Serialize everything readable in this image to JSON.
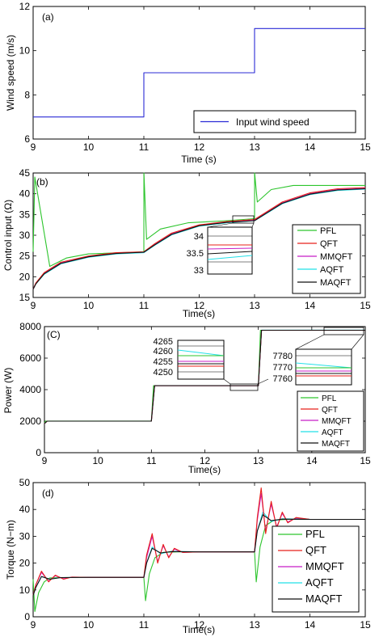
{
  "colors": {
    "PFL": "#2dc52d",
    "QFT": "#e8201a",
    "MMQFT": "#c81fc8",
    "AQFT": "#22e0e8",
    "MAQFT": "#111111",
    "wind": "#2b2bd6"
  },
  "chart_data": [
    {
      "type": "line",
      "panel_label": "(a)",
      "xlabel": "Time (s)",
      "ylabel": "Wind speed (m/s)",
      "xlim": [
        9,
        15
      ],
      "ylim": [
        6,
        12
      ],
      "x_ticks": [
        "9",
        "10",
        "11",
        "12",
        "13",
        "14",
        "15"
      ],
      "y_ticks": [
        "6",
        "8",
        "10",
        "12"
      ],
      "legend_position": "bottom-right",
      "series": [
        {
          "name": "Input wind speed",
          "x": [
            9,
            11,
            11,
            13,
            13,
            15
          ],
          "y": [
            7,
            7,
            9,
            9,
            11,
            11
          ]
        }
      ]
    },
    {
      "type": "line",
      "panel_label": "(b)",
      "xlabel": "Time(s)",
      "ylabel": "Control input (Ω)",
      "xlim": [
        9,
        15
      ],
      "ylim": [
        15,
        45
      ],
      "x_ticks": [
        "9",
        "10",
        "11",
        "12",
        "13",
        "14",
        "15"
      ],
      "y_ticks": [
        "15",
        "20",
        "25",
        "30",
        "35",
        "40",
        "45"
      ],
      "legend_position": "bottom-right",
      "inset": {
        "ylim": [
          33,
          34
        ],
        "y_ticks": [
          "33",
          "33.5",
          "34"
        ]
      },
      "series": [
        {
          "name": "PFL",
          "x": [
            9,
            9.03,
            9.3,
            9.6,
            10,
            11,
            11.002,
            11.05,
            11.3,
            11.8,
            12.5,
            13,
            13.002,
            13.05,
            13.3,
            13.7,
            15
          ],
          "y": [
            26,
            44,
            22.5,
            24.5,
            25.5,
            26,
            45,
            29,
            31.5,
            33,
            33.5,
            34,
            45,
            38,
            41,
            42,
            42
          ]
        },
        {
          "name": "QFT",
          "x": [
            9,
            9.05,
            9.2,
            9.5,
            10,
            10.5,
            11,
            11.2,
            11.5,
            12,
            12.5,
            13,
            13.2,
            13.5,
            14,
            14.5,
            15
          ],
          "y": [
            17,
            18.5,
            21,
            23.5,
            25,
            25.8,
            26,
            28,
            30.5,
            32.5,
            33.3,
            33.8,
            35.5,
            38,
            40.2,
            41.2,
            41.5
          ]
        },
        {
          "name": "MMQFT",
          "x": [
            9,
            9.05,
            9.2,
            9.5,
            10,
            10.5,
            11,
            11.2,
            11.5,
            12,
            12.5,
            13,
            13.2,
            13.5,
            14,
            14.5,
            15
          ],
          "y": [
            17,
            18.4,
            20.8,
            23.3,
            24.9,
            25.7,
            25.9,
            27.8,
            30.3,
            32.4,
            33.2,
            33.6,
            35.3,
            37.8,
            40,
            41,
            41.3
          ]
        },
        {
          "name": "AQFT",
          "x": [
            9,
            9.05,
            9.2,
            9.5,
            10,
            10.5,
            11,
            11.2,
            11.5,
            12,
            12.5,
            13,
            13.2,
            13.5,
            14,
            14.5,
            15
          ],
          "y": [
            17,
            18.3,
            20.6,
            23.1,
            24.7,
            25.5,
            25.8,
            27.6,
            30.1,
            32.2,
            33,
            33.5,
            35.1,
            37.6,
            39.8,
            40.8,
            41.1
          ]
        },
        {
          "name": "MAQFT",
          "x": [
            9,
            9.05,
            9.2,
            9.5,
            10,
            10.5,
            11,
            11.2,
            11.5,
            12,
            12.5,
            13,
            13.2,
            13.5,
            14,
            14.5,
            15
          ],
          "y": [
            17,
            18.3,
            20.7,
            23.2,
            24.8,
            25.6,
            25.9,
            27.7,
            30.2,
            32.3,
            33.1,
            33.5,
            35.2,
            37.7,
            39.9,
            40.9,
            41.2
          ]
        }
      ]
    },
    {
      "type": "line",
      "panel_label": "(C)",
      "xlabel": "Time(s)",
      "ylabel": "Power (W)",
      "xlim": [
        9,
        15
      ],
      "ylim": [
        0,
        8000
      ],
      "x_ticks": [
        "9",
        "10",
        "11",
        "12",
        "13",
        "14",
        "15"
      ],
      "y_ticks": [
        "0",
        "2000",
        "4000",
        "6000",
        "8000"
      ],
      "legend_position": "bottom-right",
      "inset1": {
        "y_ticks": [
          "4250",
          "4255",
          "4260",
          "4265"
        ]
      },
      "inset2": {
        "y_ticks": [
          "7760",
          "7770",
          "7780"
        ]
      },
      "series": [
        {
          "name": "PFL",
          "x": [
            9,
            9.02,
            11,
            11.04,
            13,
            13.04,
            15
          ],
          "y": [
            1900,
            2005,
            2005,
            4255,
            4255,
            7770,
            7770
          ]
        },
        {
          "name": "QFT",
          "x": [
            9,
            9.05,
            11,
            11.06,
            13,
            13.06,
            15
          ],
          "y": [
            1850,
            2000,
            2000,
            4250,
            4250,
            7765,
            7765
          ]
        },
        {
          "name": "MMQFT",
          "x": [
            9,
            9.05,
            11,
            11.06,
            13,
            13.06,
            15
          ],
          "y": [
            1850,
            2000,
            2000,
            4252,
            4252,
            7768,
            7768
          ]
        },
        {
          "name": "AQFT",
          "x": [
            9,
            9.05,
            11,
            11.06,
            13,
            13.06,
            15
          ],
          "y": [
            1850,
            2000,
            2000,
            4258,
            4258,
            7772,
            7772
          ]
        },
        {
          "name": "MAQFT",
          "x": [
            9,
            9.05,
            11,
            11.06,
            13,
            13.06,
            15
          ],
          "y": [
            1850,
            2000,
            2000,
            4253,
            4253,
            7767,
            7767
          ]
        }
      ]
    },
    {
      "type": "line",
      "panel_label": "(d)",
      "xlabel": "Time(s)",
      "ylabel": "Torque (N−m)",
      "xlim": [
        9,
        15
      ],
      "ylim": [
        0,
        50
      ],
      "x_ticks": [
        "9",
        "10",
        "11",
        "12",
        "13",
        "14",
        "15"
      ],
      "y_ticks": [
        "0",
        "10",
        "20",
        "30",
        "40",
        "50"
      ],
      "legend_position": "bottom-right",
      "series": [
        {
          "name": "PFL",
          "x": [
            9,
            9.03,
            9.1,
            9.2,
            9.3,
            9.5,
            10,
            11,
            11.03,
            11.1,
            11.2,
            11.35,
            11.6,
            12,
            13,
            13.03,
            13.1,
            13.2,
            13.35,
            13.6,
            14,
            15
          ],
          "y": [
            14,
            2,
            9,
            13,
            14.5,
            14.6,
            14.7,
            14.7,
            6,
            16,
            22,
            24,
            24.2,
            24.2,
            24.2,
            13,
            26,
            34,
            36,
            36.3,
            36.3,
            36.3
          ]
        },
        {
          "name": "QFT",
          "x": [
            9,
            9.05,
            9.15,
            9.28,
            9.4,
            9.55,
            9.7,
            10,
            11,
            11.05,
            11.15,
            11.25,
            11.35,
            11.45,
            11.55,
            11.7,
            12,
            13,
            13.05,
            13.12,
            13.2,
            13.3,
            13.4,
            13.5,
            13.6,
            13.75,
            14,
            15
          ],
          "y": [
            8,
            12,
            17,
            13,
            15.5,
            14,
            14.8,
            14.7,
            14.7,
            23,
            31,
            20,
            27,
            22,
            25.5,
            24,
            24.2,
            24.2,
            37,
            48,
            31,
            43,
            33,
            39,
            35,
            37,
            36.3,
            36.3
          ]
        },
        {
          "name": "MMQFT",
          "x": [
            9,
            9.05,
            9.15,
            9.28,
            9.4,
            9.55,
            9.7,
            10,
            11,
            11.05,
            11.15,
            11.25,
            11.35,
            11.45,
            11.55,
            11.7,
            12,
            13,
            13.05,
            13.12,
            13.2,
            13.3,
            13.4,
            13.5,
            13.6,
            13.75,
            14,
            15
          ],
          "y": [
            8,
            12,
            16.5,
            13.3,
            15.3,
            14.2,
            14.8,
            14.7,
            14.7,
            22,
            30,
            20.5,
            26.5,
            22.3,
            25.2,
            24,
            24.2,
            24.2,
            36,
            46,
            32,
            42,
            33.5,
            38.5,
            35.3,
            36.8,
            36.3,
            36.3
          ]
        },
        {
          "name": "AQFT",
          "x": [
            9,
            9.05,
            9.15,
            9.3,
            9.5,
            10,
            11,
            11.05,
            11.15,
            11.3,
            11.5,
            12,
            13,
            13.05,
            13.15,
            13.3,
            13.5,
            14,
            15
          ],
          "y": [
            8,
            11,
            15,
            14,
            14.6,
            14.7,
            14.7,
            20,
            26,
            23.5,
            24.4,
            24.2,
            24.2,
            32,
            39,
            35.5,
            36.5,
            36.3,
            36.3
          ]
        },
        {
          "name": "MAQFT",
          "x": [
            9,
            9.05,
            9.15,
            9.3,
            9.5,
            10,
            11,
            11.05,
            11.15,
            11.3,
            11.5,
            12,
            13,
            13.05,
            13.15,
            13.3,
            13.5,
            14,
            15
          ],
          "y": [
            8,
            11,
            15,
            14,
            14.6,
            14.7,
            14.7,
            20,
            25.5,
            23.8,
            24.3,
            24.2,
            24.2,
            32,
            38,
            35.8,
            36.4,
            36.3,
            36.3
          ]
        }
      ]
    }
  ]
}
